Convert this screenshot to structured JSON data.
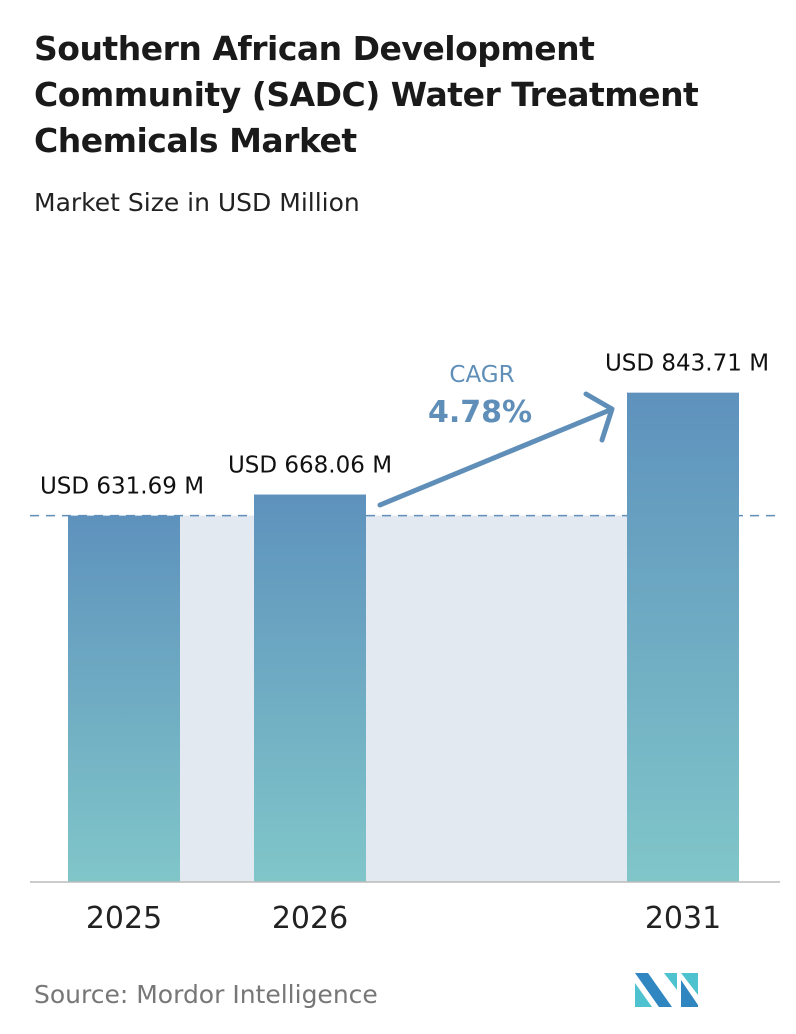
{
  "title": "Southern African Development Community (SADC) Water Treatment Chemicals Market",
  "subtitle": "Market Size in USD Million",
  "source": "Source:  Mordor Intelligence",
  "colors": {
    "bar_top": "#5e92bd",
    "bar_bottom": "#80c6c9",
    "shade": "#e2e9f1",
    "cagr": "#5f8fb8",
    "text": "#111111"
  },
  "chart_data": {
    "type": "bar",
    "categories": [
      "2025",
      "2026",
      "2031"
    ],
    "values": [
      631.69,
      668.06,
      843.71
    ],
    "data_labels": [
      "USD 631.69 M",
      "USD 668.06 M",
      "USD 843.71 M"
    ],
    "cagr_label": "CAGR",
    "cagr_value": "4.78%",
    "unit": "USD Million"
  }
}
